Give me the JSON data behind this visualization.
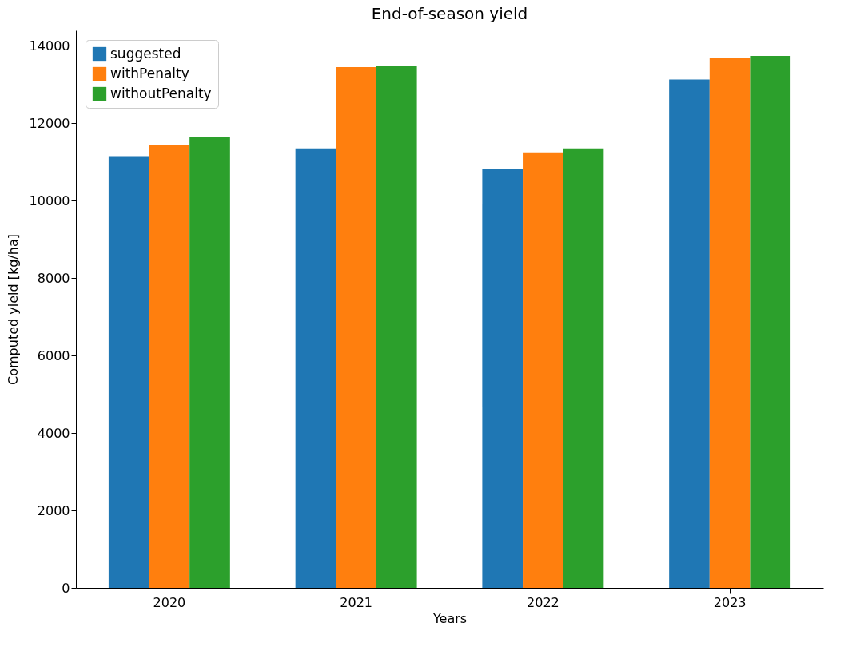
{
  "chart_data": {
    "type": "bar",
    "title": "End-of-season yield",
    "xlabel": "Years",
    "ylabel": "Computed yield [kg/ha]",
    "categories": [
      "2020",
      "2021",
      "2022",
      "2023"
    ],
    "series": [
      {
        "name": "suggested",
        "color": "#1f77b4",
        "values": [
          11150,
          11350,
          10820,
          13130
        ]
      },
      {
        "name": "withPenalty",
        "color": "#ff7f0e",
        "values": [
          11440,
          13450,
          11250,
          13690
        ]
      },
      {
        "name": "withoutPenalty",
        "color": "#2ca02c",
        "values": [
          11650,
          13470,
          11350,
          13740
        ]
      }
    ],
    "ylim": [
      0,
      14400
    ],
    "yticks": [
      0,
      2000,
      4000,
      6000,
      8000,
      10000,
      12000,
      14000
    ],
    "legend": "top left",
    "grid": false
  }
}
